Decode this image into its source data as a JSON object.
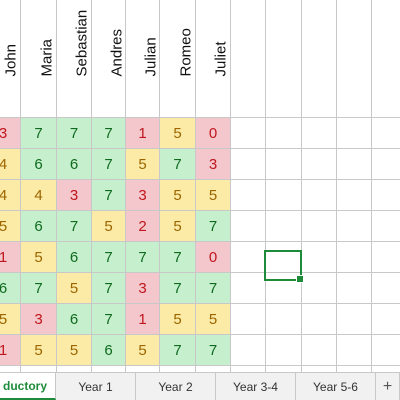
{
  "students": [
    "John",
    "Maria",
    "Sebastian",
    "Andres",
    "Julian",
    "Romeo",
    "Juliet"
  ],
  "grid": [
    [
      3,
      7,
      7,
      7,
      1,
      5,
      0
    ],
    [
      4,
      6,
      6,
      7,
      5,
      7,
      3
    ],
    [
      4,
      4,
      3,
      7,
      3,
      5,
      5
    ],
    [
      5,
      6,
      7,
      5,
      2,
      5,
      7
    ],
    [
      1,
      5,
      6,
      7,
      7,
      7,
      0
    ],
    [
      6,
      7,
      5,
      7,
      3,
      7,
      7
    ],
    [
      5,
      3,
      6,
      7,
      1,
      5,
      5
    ],
    [
      1,
      5,
      5,
      6,
      5,
      7,
      7
    ]
  ],
  "tabs": [
    {
      "label": "ductory",
      "active": true
    },
    {
      "label": "Year 1",
      "active": false
    },
    {
      "label": "Year 2",
      "active": false
    },
    {
      "label": "Year 3-4",
      "active": false
    },
    {
      "label": "Year 5-6",
      "active": false
    }
  ],
  "add_tab_label": "+",
  "colors": {
    "low": "#f4c7cc",
    "mid": "#fbeba6",
    "high": "#c6efcd",
    "accent": "#1e8b3a"
  }
}
